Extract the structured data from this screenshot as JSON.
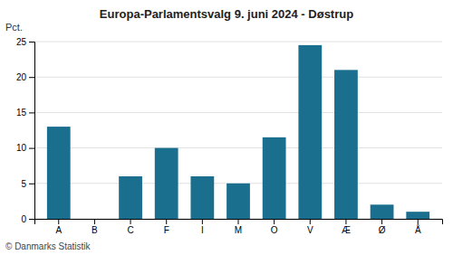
{
  "chart_data": {
    "type": "bar",
    "title": "Europa-Parlamentsvalg 9. juni 2024 - Døstrup",
    "ylabel": "Pct.",
    "footer": "© Danmarks Statistik",
    "categories": [
      "A",
      "B",
      "C",
      "F",
      "I",
      "M",
      "O",
      "V",
      "Æ",
      "Ø",
      "Å"
    ],
    "values": [
      13.0,
      0.0,
      6.0,
      10.0,
      6.0,
      5.0,
      11.5,
      24.5,
      21.0,
      2.0,
      1.0
    ],
    "color": "#1a6e8e",
    "ylim": [
      0,
      25
    ],
    "yticks": [
      0,
      5,
      10,
      15,
      20,
      25
    ],
    "grid": true
  }
}
